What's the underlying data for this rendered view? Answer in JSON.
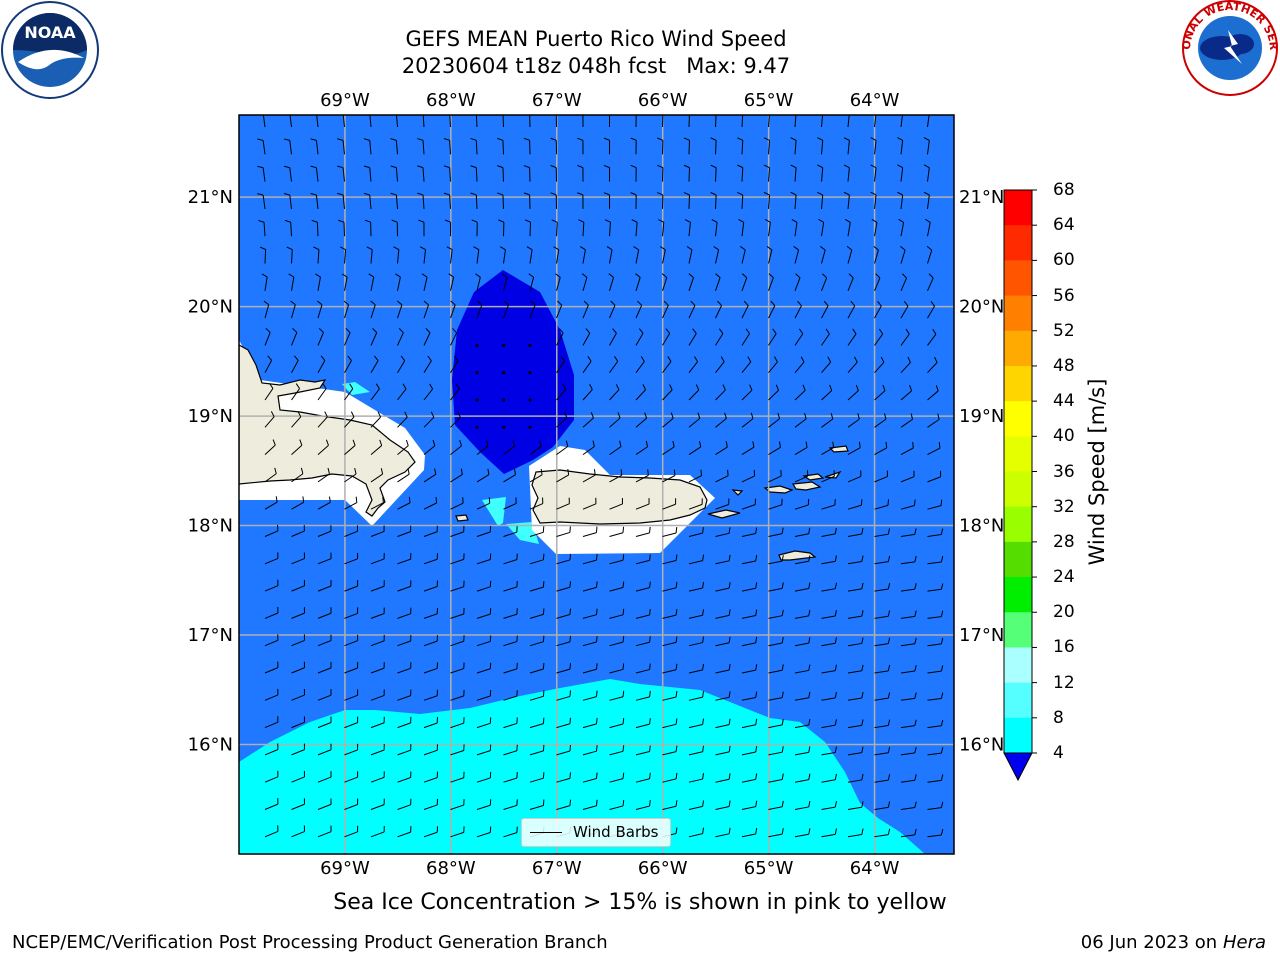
{
  "title": {
    "line1": "GEFS MEAN Puerto Rico Wind Speed",
    "line2": "20230604 t18z 048h fcst   Max: 9.47"
  },
  "logos": {
    "left": "NOAA",
    "right": "NATIONAL WEATHER SERVICE"
  },
  "map": {
    "lon_ticks": [
      "69°W",
      "68°W",
      "67°W",
      "66°W",
      "65°W",
      "64°W"
    ],
    "lat_ticks": [
      "21°N",
      "20°N",
      "19°N",
      "18°N",
      "17°N",
      "16°N"
    ],
    "lon_range": [
      -70.0,
      -63.25
    ],
    "lat_range": [
      15.0,
      21.75
    ],
    "gridlines": true,
    "colors": {
      "ocean": "#1f78ff",
      "land": "#eeecdc",
      "calm_pocket": "#0000e5",
      "band_8_12": "#00ffff",
      "band_12_16": "#40ffff",
      "masked": "#ffffff"
    }
  },
  "legend": {
    "label": "Wind Barbs"
  },
  "colorbar": {
    "title": "Wind Speed [m/s]",
    "ticks": [
      "68",
      "64",
      "60",
      "56",
      "52",
      "48",
      "44",
      "40",
      "36",
      "32",
      "28",
      "24",
      "20",
      "16",
      "12",
      "8",
      "4"
    ],
    "colors": [
      "#ff0000",
      "#ff2a00",
      "#ff5500",
      "#ff8000",
      "#ffaa00",
      "#ffd500",
      "#ffff00",
      "#e5ff00",
      "#ccff00",
      "#99ff00",
      "#55dd00",
      "#00ee00",
      "#55ff77",
      "#aaffff",
      "#55ffff",
      "#00ffff",
      "#1f78ff"
    ],
    "underflow_color": "#0000ee"
  },
  "notes": {
    "sea_ice": "Sea Ice Concentration > 15% is shown in pink to yellow"
  },
  "footer": {
    "left": "NCEP/EMC/Verification Post Processing Product Generation Branch",
    "right_date": "06 Jun 2023 on",
    "right_machine": "Hera"
  }
}
